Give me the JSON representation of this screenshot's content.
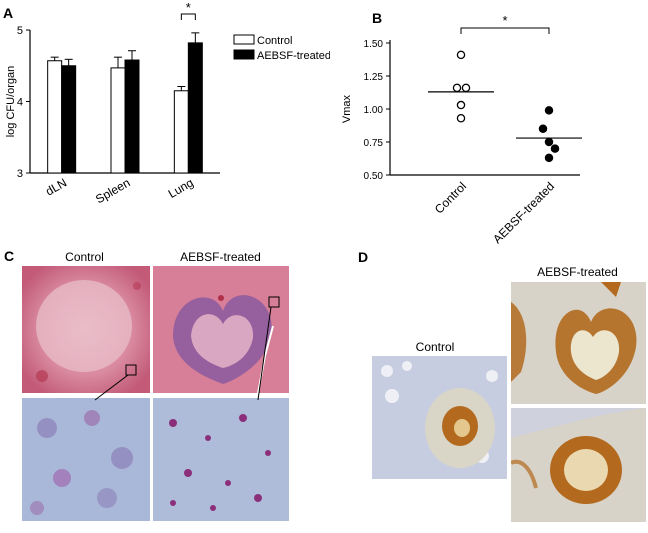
{
  "panels": {
    "A": "A",
    "B": "B",
    "C": "C",
    "D": "D"
  },
  "chart_data": [
    {
      "type": "bar",
      "panel": "A",
      "ylabel": "log CFU/organ",
      "ylim": [
        3,
        5
      ],
      "yticks": [
        "3",
        "4",
        "5"
      ],
      "categories": [
        "dLN",
        "Spleen",
        "Lung"
      ],
      "series": [
        {
          "name": "Control",
          "color": "#ffffff",
          "values": [
            4.57,
            4.47,
            4.15
          ],
          "errors": [
            0.05,
            0.15,
            0.06
          ]
        },
        {
          "name": "AEBSF-treated",
          "color": "#000000",
          "values": [
            4.5,
            4.58,
            4.82
          ],
          "errors": [
            0.09,
            0.13,
            0.14
          ]
        }
      ],
      "legend": "top-right",
      "annotations": [
        {
          "text": "*",
          "between": "Lung"
        }
      ]
    },
    {
      "type": "scatter",
      "panel": "B",
      "ylabel": "Vmax",
      "ylim": [
        0.5,
        1.5
      ],
      "yticks": [
        "0.50",
        "0.75",
        "1.00",
        "1.25",
        "1.50"
      ],
      "categories": [
        "Control",
        "AEBSF-treated"
      ],
      "series": [
        {
          "name": "Control",
          "marker": "open-circle",
          "values": [
            1.41,
            1.16,
            1.16,
            1.03,
            0.93
          ],
          "mean": 1.13
        },
        {
          "name": "AEBSF-treated",
          "marker": "filled-circle",
          "values": [
            0.99,
            0.85,
            0.75,
            0.7,
            0.63
          ],
          "mean": 0.78
        }
      ],
      "annotations": [
        {
          "text": "*"
        }
      ]
    }
  ],
  "panel_c": {
    "titles": [
      "Control",
      "AEBSF-treated"
    ],
    "images": [
      "lung-section-control-low-mag",
      "lung-section-aebsf-low-mag",
      "lung-section-control-high-mag",
      "lung-section-aebsf-high-mag"
    ],
    "colors": {
      "he_pink": "#d98aa0",
      "he_purple": "#8a5a9e",
      "high_mag_blue": "#a9b8d8"
    }
  },
  "panel_d": {
    "titles": [
      "Control",
      "AEBSF-treated"
    ],
    "colors": {
      "stain_brown": "#b36a1e",
      "background_blue": "#c7cde0"
    }
  }
}
